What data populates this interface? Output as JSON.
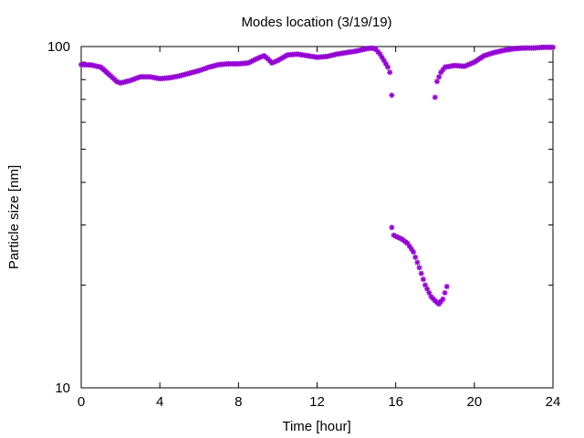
{
  "chart_data": {
    "type": "scatter",
    "title": "Modes location (3/19/19)",
    "xlabel": "Time [hour]",
    "ylabel": "Particle size [nm]",
    "xlim": [
      0,
      24
    ],
    "ylim": [
      10,
      100
    ],
    "yscale": "log",
    "xticks": [
      0,
      4,
      8,
      12,
      16,
      20,
      24
    ],
    "yticks": [
      10,
      100
    ],
    "grid": false,
    "marker_color": "#9400d3",
    "series": [
      {
        "name": "",
        "points": [
          [
            0.0,
            88.5
          ],
          [
            0.5,
            88.3
          ],
          [
            1.0,
            87.0
          ],
          [
            1.5,
            82.0
          ],
          [
            1.8,
            79.0
          ],
          [
            2.0,
            78.2
          ],
          [
            2.5,
            79.5
          ],
          [
            3.0,
            81.5
          ],
          [
            3.5,
            81.5
          ],
          [
            4.0,
            80.5
          ],
          [
            4.5,
            81.0
          ],
          [
            5.0,
            82.0
          ],
          [
            5.5,
            83.5
          ],
          [
            6.0,
            85.0
          ],
          [
            6.5,
            87.0
          ],
          [
            7.0,
            88.5
          ],
          [
            7.5,
            89.0
          ],
          [
            8.0,
            89.0
          ],
          [
            8.5,
            89.5
          ],
          [
            9.0,
            92.5
          ],
          [
            9.3,
            94.0
          ],
          [
            9.5,
            92.0
          ],
          [
            9.7,
            89.5
          ],
          [
            10.0,
            91.0
          ],
          [
            10.5,
            94.5
          ],
          [
            11.0,
            95.0
          ],
          [
            11.5,
            94.0
          ],
          [
            12.0,
            93.0
          ],
          [
            12.5,
            93.5
          ],
          [
            13.0,
            95.0
          ],
          [
            13.5,
            96.0
          ],
          [
            14.0,
            97.0
          ],
          [
            14.5,
            98.5
          ],
          [
            14.8,
            99.0
          ],
          [
            15.0,
            98.0
          ],
          [
            15.2,
            95.0
          ],
          [
            15.4,
            91.0
          ],
          [
            15.6,
            87.0
          ],
          [
            15.7,
            84.0
          ],
          [
            15.8,
            72.0
          ],
          [
            18.0,
            71.0
          ],
          [
            18.1,
            79.0
          ],
          [
            18.3,
            84.0
          ],
          [
            18.5,
            87.0
          ],
          [
            19.0,
            88.0
          ],
          [
            19.5,
            87.5
          ],
          [
            20.0,
            90.0
          ],
          [
            20.5,
            94.0
          ],
          [
            21.0,
            96.0
          ],
          [
            21.5,
            97.5
          ],
          [
            22.0,
            98.5
          ],
          [
            22.5,
            99.0
          ],
          [
            23.0,
            99.0
          ],
          [
            23.5,
            99.5
          ],
          [
            24.0,
            99.5
          ]
        ]
      },
      {
        "name": "",
        "points": [
          [
            15.8,
            29.5
          ],
          [
            15.9,
            28.0
          ],
          [
            16.0,
            27.8
          ],
          [
            16.3,
            27.3
          ],
          [
            16.6,
            26.5
          ],
          [
            16.9,
            25.0
          ],
          [
            17.2,
            22.5
          ],
          [
            17.5,
            20.0
          ],
          [
            17.8,
            18.5
          ],
          [
            18.0,
            18.0
          ],
          [
            18.2,
            17.6
          ],
          [
            18.4,
            18.2
          ],
          [
            18.6,
            19.8
          ]
        ]
      }
    ]
  }
}
